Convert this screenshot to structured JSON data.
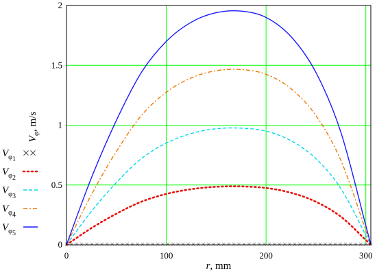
{
  "chart_data": {
    "type": "line",
    "xlabel": {
      "var": "r",
      "unit": ", mm"
    },
    "ylabel": {
      "var": "V",
      "sub": "φ",
      "unit": ", m/s"
    },
    "xlim": [
      0,
      305
    ],
    "ylim": [
      0,
      2
    ],
    "x_ticks": [
      0,
      100,
      200,
      300
    ],
    "y_ticks": [
      0,
      0.5,
      1,
      1.5,
      2
    ],
    "x_tick_labels": [
      "0",
      "100",
      "200",
      "300"
    ],
    "y_tick_labels": [
      "0",
      "0.5",
      "1",
      "1.5",
      "2"
    ],
    "grid": true,
    "grid_color": "#00ff00",
    "legend_position": "left",
    "series": [
      {
        "name": "Vφ1",
        "var": "V",
        "sub": "φ",
        "idx": "1",
        "color": "#808080",
        "style": "cross",
        "x": [
          0,
          25,
          50,
          75,
          100,
          125,
          150,
          175,
          200,
          225,
          250,
          275,
          300,
          305
        ],
        "y": [
          0,
          0,
          0,
          0,
          0,
          0,
          0,
          0,
          0,
          0,
          0,
          0,
          0,
          0
        ]
      },
      {
        "name": "Vφ2",
        "var": "V",
        "sub": "φ",
        "idx": "2",
        "color": "#e8120c",
        "style": "dotted",
        "x": [
          0,
          25,
          50,
          75,
          100,
          125,
          150,
          175,
          200,
          225,
          250,
          275,
          300,
          305
        ],
        "y": [
          0,
          0.14,
          0.26,
          0.36,
          0.425,
          0.465,
          0.485,
          0.488,
          0.475,
          0.435,
          0.36,
          0.235,
          0.04,
          0
        ]
      },
      {
        "name": "Vφ3",
        "var": "V",
        "sub": "φ",
        "idx": "3",
        "color": "#00d8f0",
        "style": "dashed",
        "x": [
          0,
          25,
          50,
          75,
          100,
          125,
          150,
          175,
          200,
          225,
          250,
          275,
          300,
          305
        ],
        "y": [
          0,
          0.28,
          0.52,
          0.72,
          0.85,
          0.93,
          0.97,
          0.975,
          0.95,
          0.87,
          0.72,
          0.47,
          0.08,
          0
        ]
      },
      {
        "name": "Vφ4",
        "var": "V",
        "sub": "φ",
        "idx": "4",
        "color": "#f07800",
        "style": "dashdot",
        "x": [
          0,
          25,
          50,
          75,
          100,
          125,
          150,
          175,
          200,
          225,
          250,
          275,
          300,
          305
        ],
        "y": [
          0,
          0.42,
          0.78,
          1.08,
          1.275,
          1.395,
          1.455,
          1.465,
          1.425,
          1.305,
          1.08,
          0.705,
          0.12,
          0
        ]
      },
      {
        "name": "Vφ5",
        "var": "V",
        "sub": "φ",
        "idx": "5",
        "color": "#1a1aff",
        "style": "solid",
        "x": [
          0,
          25,
          50,
          75,
          100,
          125,
          150,
          175,
          200,
          225,
          250,
          275,
          300,
          305
        ],
        "y": [
          0,
          0.56,
          1.04,
          1.44,
          1.7,
          1.86,
          1.94,
          1.953,
          1.9,
          1.74,
          1.44,
          0.94,
          0.16,
          0
        ]
      }
    ]
  }
}
